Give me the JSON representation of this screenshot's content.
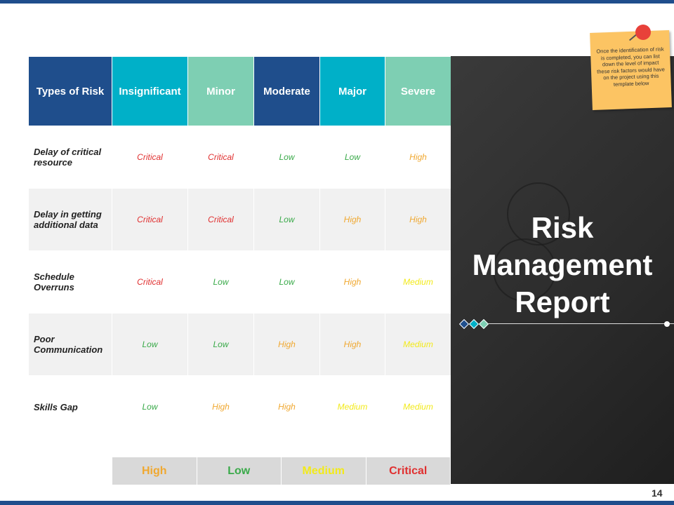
{
  "colors": {
    "header_dark_blue": "#1f4e8c",
    "header_teal": "#00b0c8",
    "header_mint": "#7ecfb3",
    "Critical": "#e03030",
    "Low": "#3aaa4a",
    "High": "#f0a830",
    "Medium": "#f2ea1a"
  },
  "table": {
    "headers": [
      "Types of Risk",
      "Insignificant",
      "Minor",
      "Moderate",
      "Major",
      "Severe"
    ],
    "rows": [
      {
        "label": "Delay of critical resource",
        "values": [
          "Critical",
          "Critical",
          "Low",
          "Low",
          "High"
        ]
      },
      {
        "label": "Delay in getting additional data",
        "values": [
          "Critical",
          "Critical",
          "Low",
          "High",
          "High"
        ]
      },
      {
        "label": "Schedule Overruns",
        "values": [
          "Critical",
          "Low",
          "Low",
          "High",
          "Medium"
        ]
      },
      {
        "label": "Poor Communication",
        "values": [
          "Low",
          "Low",
          "High",
          "High",
          "Medium"
        ]
      },
      {
        "label": "Skills Gap",
        "values": [
          "Low",
          "High",
          "High",
          "Medium",
          "Medium"
        ]
      }
    ]
  },
  "legend": [
    "High",
    "Low",
    "Medium",
    "Critical"
  ],
  "panel": {
    "title_lines": [
      "Risk",
      "Management",
      "Report"
    ]
  },
  "note": {
    "text": "Once the identification of risk is completed, you can list down the level of impact these risk factors would have on the project using this template below"
  },
  "page_number": "14"
}
